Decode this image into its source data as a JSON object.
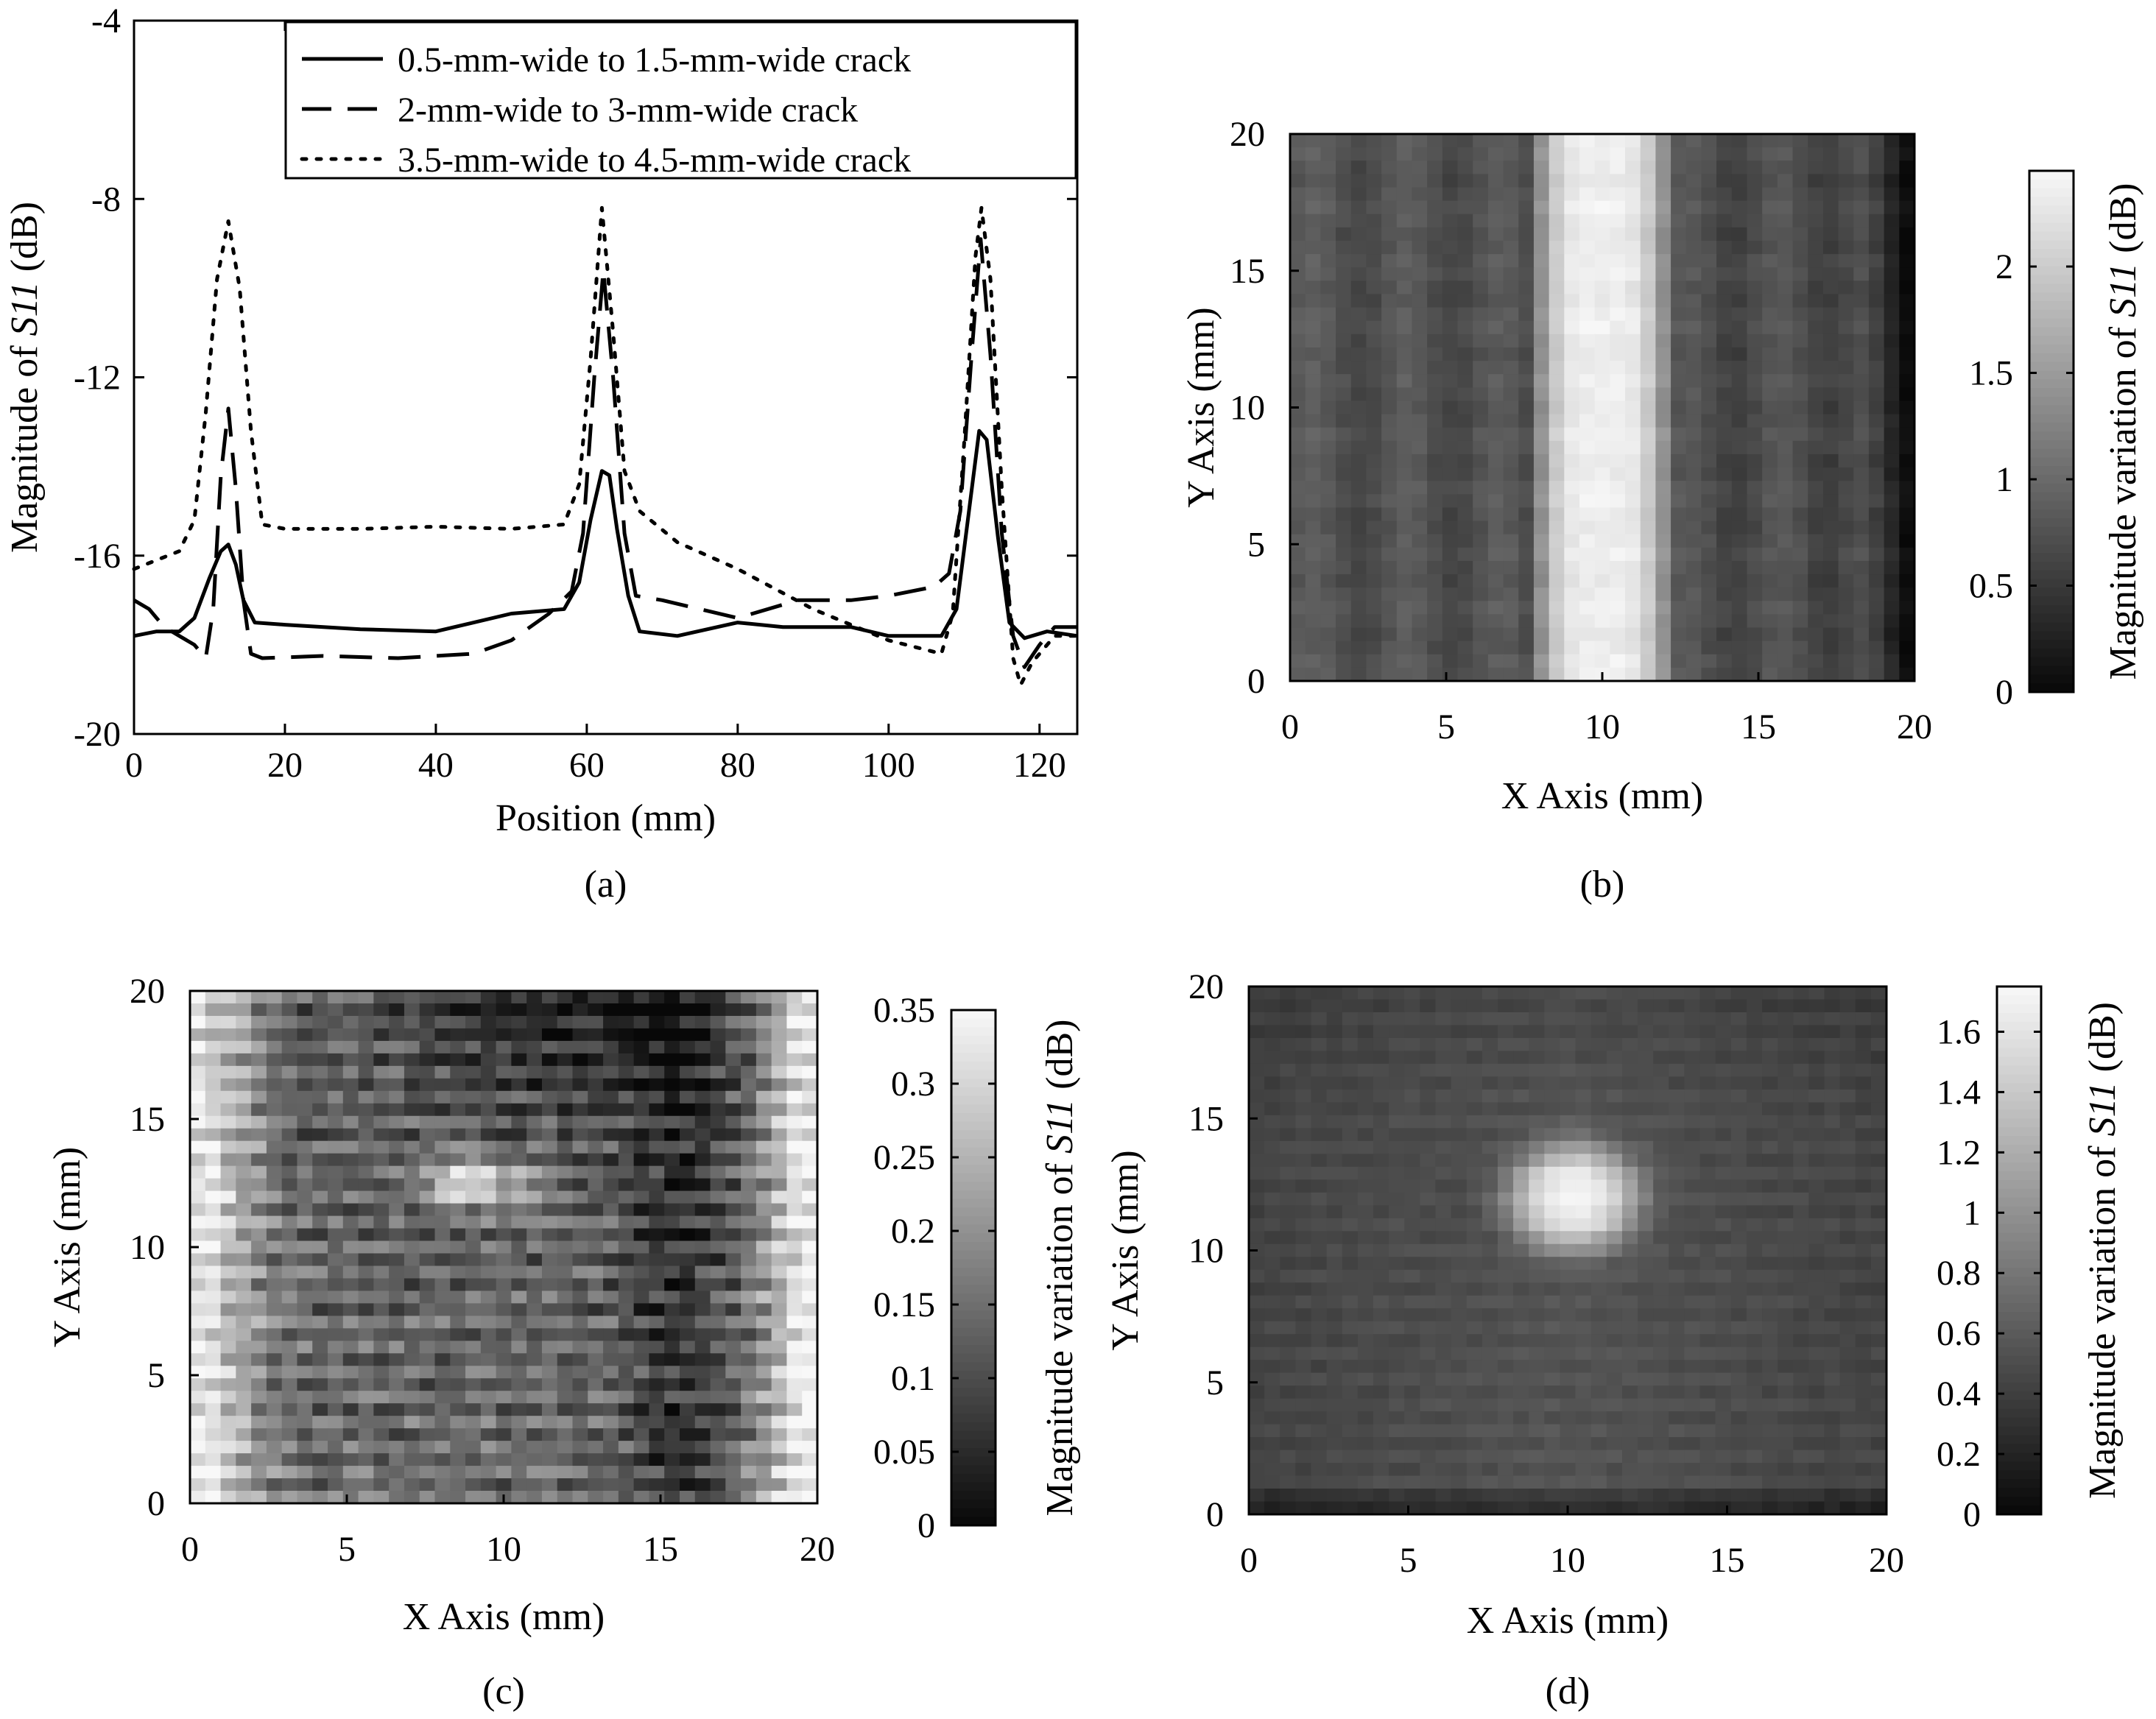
{
  "colors": {
    "line": "#000000",
    "background": "#ffffff",
    "frame": "#000000"
  },
  "chart_data": [
    {
      "id": "a",
      "type": "line",
      "caption": "(a)",
      "xlabel": "Position (mm)",
      "ylabel_prefix": "Magnitude of ",
      "ylabel_italic": "S11",
      "ylabel_suffix": " (dB)",
      "xlim": [
        0,
        125
      ],
      "ylim": [
        -20,
        -4
      ],
      "xticks": [
        0,
        20,
        40,
        60,
        80,
        100,
        120
      ],
      "yticks": [
        -20,
        -16,
        -12,
        -8,
        -4
      ],
      "xtick_labels": [
        "0",
        "20",
        "40",
        "60",
        "80",
        "100",
        "120"
      ],
      "ytick_labels": [
        "-20",
        "-16",
        "-12",
        "-8",
        "-4"
      ],
      "legend_position": "top-right",
      "series": [
        {
          "name": "0.5-mm-wide to 1.5-mm-wide crack",
          "style": "solid",
          "points": [
            [
              0,
              -17.8
            ],
            [
              3,
              -17.7
            ],
            [
              6,
              -17.7
            ],
            [
              8,
              -17.4
            ],
            [
              10,
              -16.5
            ],
            [
              11.5,
              -15.9
            ],
            [
              12.5,
              -15.75
            ],
            [
              13.5,
              -16.2
            ],
            [
              14.5,
              -17.0
            ],
            [
              16,
              -17.5
            ],
            [
              20,
              -17.55
            ],
            [
              30,
              -17.65
            ],
            [
              40,
              -17.7
            ],
            [
              50,
              -17.3
            ],
            [
              57,
              -17.2
            ],
            [
              59,
              -16.6
            ],
            [
              60.5,
              -15.2
            ],
            [
              62,
              -14.1
            ],
            [
              63,
              -14.2
            ],
            [
              64,
              -15.4
            ],
            [
              65.5,
              -16.9
            ],
            [
              67,
              -17.7
            ],
            [
              72,
              -17.8
            ],
            [
              80,
              -17.5
            ],
            [
              86,
              -17.6
            ],
            [
              95,
              -17.6
            ],
            [
              100,
              -17.8
            ],
            [
              107,
              -17.8
            ],
            [
              109,
              -17.2
            ],
            [
              110.5,
              -15.2
            ],
            [
              112,
              -13.2
            ],
            [
              113,
              -13.4
            ],
            [
              114.5,
              -15.6
            ],
            [
              116,
              -17.5
            ],
            [
              118,
              -17.85
            ],
            [
              121,
              -17.7
            ],
            [
              125,
              -17.8
            ]
          ]
        },
        {
          "name": "2-mm-wide to 3-mm-wide crack",
          "style": "dashed",
          "points": [
            [
              0,
              -17.0
            ],
            [
              2,
              -17.2
            ],
            [
              4,
              -17.6
            ],
            [
              6,
              -17.8
            ],
            [
              8,
              -18.0
            ],
            [
              9.5,
              -18.3
            ],
            [
              10.5,
              -17.2
            ],
            [
              11.5,
              -14.2
            ],
            [
              12.5,
              -12.7
            ],
            [
              13.5,
              -14.5
            ],
            [
              14.5,
              -17.0
            ],
            [
              15.5,
              -18.2
            ],
            [
              17,
              -18.3
            ],
            [
              25,
              -18.25
            ],
            [
              35,
              -18.3
            ],
            [
              45,
              -18.2
            ],
            [
              50,
              -17.9
            ],
            [
              55,
              -17.3
            ],
            [
              58,
              -16.8
            ],
            [
              59.5,
              -15.5
            ],
            [
              61,
              -12.0
            ],
            [
              62.2,
              -9.6
            ],
            [
              63.5,
              -12.0
            ],
            [
              65,
              -15.5
            ],
            [
              66.5,
              -16.9
            ],
            [
              70,
              -17.0
            ],
            [
              75,
              -17.2
            ],
            [
              80,
              -17.4
            ],
            [
              88,
              -17.0
            ],
            [
              95,
              -17.0
            ],
            [
              100,
              -16.9
            ],
            [
              106,
              -16.7
            ],
            [
              108,
              -16.4
            ],
            [
              109.5,
              -15.0
            ],
            [
              111,
              -11.5
            ],
            [
              112.2,
              -8.9
            ],
            [
              113.5,
              -11.5
            ],
            [
              115,
              -15.5
            ],
            [
              116.5,
              -17.8
            ],
            [
              118,
              -18.5
            ],
            [
              120,
              -18.0
            ],
            [
              122,
              -17.6
            ],
            [
              125,
              -17.6
            ]
          ]
        },
        {
          "name": "3.5-mm-wide to 4.5-mm-wide crack",
          "style": "dotted",
          "points": [
            [
              0,
              -16.3
            ],
            [
              3,
              -16.1
            ],
            [
              6,
              -15.9
            ],
            [
              8,
              -15.2
            ],
            [
              9.5,
              -12.8
            ],
            [
              11,
              -9.8
            ],
            [
              12.5,
              -8.5
            ],
            [
              14,
              -10.0
            ],
            [
              15.5,
              -13.2
            ],
            [
              17,
              -15.3
            ],
            [
              20,
              -15.4
            ],
            [
              30,
              -15.4
            ],
            [
              40,
              -15.35
            ],
            [
              50,
              -15.4
            ],
            [
              57,
              -15.3
            ],
            [
              59,
              -14.4
            ],
            [
              60.5,
              -11.6
            ],
            [
              62,
              -8.2
            ],
            [
              63.5,
              -11.0
            ],
            [
              65,
              -14.1
            ],
            [
              67,
              -15.0
            ],
            [
              72,
              -15.7
            ],
            [
              80,
              -16.3
            ],
            [
              90,
              -17.2
            ],
            [
              100,
              -17.9
            ],
            [
              107,
              -18.2
            ],
            [
              108.5,
              -17.3
            ],
            [
              110,
              -13.5
            ],
            [
              111.5,
              -9.3
            ],
            [
              112.3,
              -8.2
            ],
            [
              113.5,
              -9.8
            ],
            [
              115,
              -14.5
            ],
            [
              116.5,
              -18.3
            ],
            [
              117.5,
              -18.9
            ],
            [
              119,
              -18.4
            ],
            [
              122,
              -17.8
            ],
            [
              125,
              -17.8
            ]
          ]
        }
      ]
    },
    {
      "id": "b",
      "type": "heatmap",
      "caption": "(b)",
      "xlabel": "X Axis (mm)",
      "ylabel": "Y Axis (mm)",
      "cbar_prefix": "Magnitude variation of ",
      "cbar_italic": "S11",
      "cbar_suffix": " (dB)",
      "xlim": [
        0,
        20
      ],
      "ylim": [
        0,
        20
      ],
      "xticks": [
        0,
        5,
        10,
        15,
        20
      ],
      "yticks": [
        0,
        5,
        10,
        15,
        20
      ],
      "xtick_labels": [
        "0",
        "5",
        "10",
        "15",
        "20"
      ],
      "ytick_labels": [
        "0",
        "5",
        "10",
        "15",
        "20"
      ],
      "clim": [
        0,
        2.45
      ],
      "cticks": [
        0,
        0.5,
        1,
        1.5,
        2
      ],
      "ctick_labels": [
        "0",
        "0.5",
        "1",
        "1.5",
        "2"
      ],
      "pattern": "vertical bright band centred at x = 10 mm, width about 5 mm, peak about 2.4 dB; background 0.5–0.9 dB; dark strip near x = 19–20 mm",
      "grid": [
        41,
        41
      ]
    },
    {
      "id": "c",
      "type": "heatmap",
      "caption": "(c)",
      "xlabel": "X Axis (mm)",
      "ylabel": "Y Axis (mm)",
      "cbar_prefix": "Magnitude variation of ",
      "cbar_italic": "S11",
      "cbar_suffix": " (dB)",
      "xlim": [
        0,
        20
      ],
      "ylim": [
        0,
        20
      ],
      "xticks": [
        0,
        5,
        10,
        15,
        20
      ],
      "yticks": [
        0,
        5,
        10,
        15,
        20
      ],
      "xtick_labels": [
        "0",
        "5",
        "10",
        "15",
        "20"
      ],
      "ytick_labels": [
        "0",
        "5",
        "10",
        "15",
        "20"
      ],
      "clim": [
        0,
        0.35
      ],
      "cticks": [
        0,
        0.05,
        0.1,
        0.15,
        0.2,
        0.25,
        0.3,
        0.35
      ],
      "ctick_labels": [
        "0",
        "0.05",
        "0.1",
        "0.15",
        "0.2",
        "0.25",
        "0.3",
        "0.35"
      ],
      "pattern": "noisy horizontal striping; faint bright spot near (9, 12.5) mm; bright left and right edges; dark top centre and dark column near x = 15 mm",
      "grid": [
        41,
        41
      ]
    },
    {
      "id": "d",
      "type": "heatmap",
      "caption": "(d)",
      "xlabel": "X Axis (mm)",
      "ylabel": "Y Axis (mm)",
      "cbar_prefix": "Magnitude variation of ",
      "cbar_italic": "S11",
      "cbar_suffix": " (dB)",
      "xlim": [
        0,
        20
      ],
      "ylim": [
        0,
        20
      ],
      "xticks": [
        0,
        5,
        10,
        15,
        20
      ],
      "yticks": [
        0,
        5,
        10,
        15,
        20
      ],
      "xtick_labels": [
        "0",
        "5",
        "10",
        "15",
        "20"
      ],
      "ytick_labels": [
        "0",
        "5",
        "10",
        "15",
        "20"
      ],
      "clim": [
        0,
        1.75
      ],
      "cticks": [
        0,
        0.2,
        0.4,
        0.6,
        0.8,
        1,
        1.2,
        1.4,
        1.6
      ],
      "ctick_labels": [
        "0",
        "0.2",
        "0.4",
        "0.6",
        "0.8",
        "1",
        "1.2",
        "1.4",
        "1.6"
      ],
      "pattern": "bright circular spot centred near (10.2, 12) mm, radius about 2 mm, peak about 1.7 dB; background 0.4–0.7 dB; darker bottom edge",
      "grid": [
        41,
        41
      ]
    }
  ]
}
